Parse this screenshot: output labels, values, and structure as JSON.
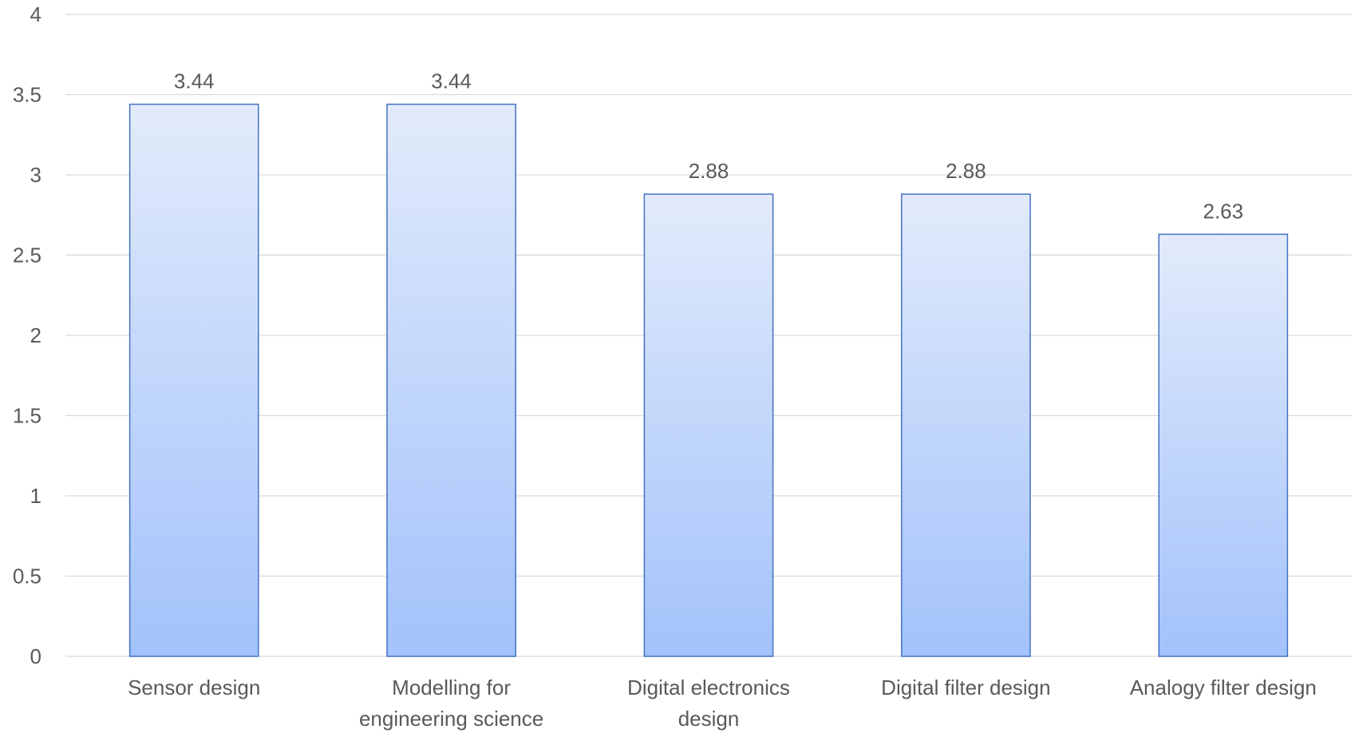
{
  "chart_data": {
    "type": "bar",
    "categories": [
      [
        "Sensor design"
      ],
      [
        "Modelling for",
        "engineering science"
      ],
      [
        "Digital electronics",
        "design"
      ],
      [
        "Digital filter design"
      ],
      [
        "Analogy filter design"
      ]
    ],
    "values": [
      3.44,
      3.44,
      2.88,
      2.88,
      2.63
    ],
    "data_labels": [
      "3.44",
      "3.44",
      "2.88",
      "2.88",
      "2.63"
    ],
    "ylim": [
      0,
      4
    ],
    "y_ticks": [
      "0",
      "0.5",
      "1",
      "1.5",
      "2",
      "2.5",
      "3",
      "3.5",
      "4"
    ],
    "y_tick_values": [
      0,
      0.5,
      1,
      1.5,
      2,
      2.5,
      3,
      3.5,
      4
    ],
    "grid": true,
    "legend": "none",
    "colors": {
      "bar_top": "#e2ebfb",
      "bar_bottom": "#a3c2fb",
      "bar_border": "#4472c4",
      "grid": "#d9d9d9",
      "text": "#595959"
    }
  }
}
